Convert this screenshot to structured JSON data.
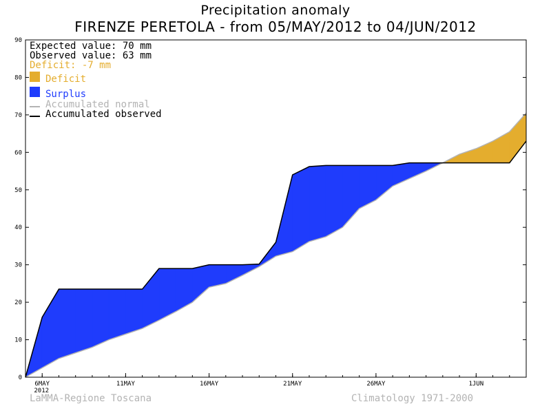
{
  "title": "Precipitation anomaly",
  "subtitle": "FIRENZE PERETOLA - from 05/MAY/2012 to 04/JUN/2012",
  "info": {
    "expected": "Expected value: 70 mm",
    "observed": "Observed value: 63 mm",
    "deficit": "Deficit: -7 mm"
  },
  "legend": {
    "deficit": "Deficit",
    "surplus": "Surplus",
    "normal": "Accumulated normal",
    "observed": "Accumulated observed"
  },
  "footer": {
    "left": "LaMMA-Regione Toscana",
    "right": "Climatology 1971-2000"
  },
  "colors": {
    "deficit": "#e4ad2e",
    "surplus": "#1f3cfc",
    "normal": "#b3b3b3",
    "observed": "#000000",
    "info_deficit": "#e4ad2e"
  },
  "chart_data": {
    "type": "area",
    "title": "Precipitation anomaly",
    "subtitle": "FIRENZE PERETOLA - from 05/MAY/2012 to 04/JUN/2012",
    "xlabel": "",
    "ylabel": "",
    "ylim": [
      0,
      90
    ],
    "yticks": [
      0,
      10,
      20,
      30,
      40,
      50,
      60,
      70,
      80,
      90
    ],
    "xticks": [
      {
        "day": 1,
        "label": "6MAY",
        "sublabel": "2012"
      },
      {
        "day": 6,
        "label": "11MAY"
      },
      {
        "day": 11,
        "label": "16MAY"
      },
      {
        "day": 16,
        "label": "21MAY"
      },
      {
        "day": 21,
        "label": "26MAY"
      },
      {
        "day": 27,
        "label": "1JUN"
      }
    ],
    "xlim": [
      0,
      30
    ],
    "x": [
      "05/MAY",
      "06/MAY",
      "07/MAY",
      "08/MAY",
      "09/MAY",
      "10/MAY",
      "11/MAY",
      "12/MAY",
      "13/MAY",
      "14/MAY",
      "15/MAY",
      "16/MAY",
      "17/MAY",
      "18/MAY",
      "19/MAY",
      "20/MAY",
      "21/MAY",
      "22/MAY",
      "23/MAY",
      "24/MAY",
      "25/MAY",
      "26/MAY",
      "27/MAY",
      "28/MAY",
      "29/MAY",
      "30/MAY",
      "31/MAY",
      "01/JUN",
      "02/JUN",
      "03/JUN",
      "04/JUN"
    ],
    "series": [
      {
        "name": "Accumulated normal",
        "values": [
          0,
          2.5,
          5,
          6.5,
          8,
          10,
          11.5,
          13,
          15.2,
          17.5,
          20,
          24,
          25,
          27.2,
          29.5,
          32.3,
          33.5,
          36.2,
          37.5,
          40,
          45,
          47.3,
          51,
          53,
          55,
          57.2,
          59.5,
          61,
          63,
          65.5,
          70.5
        ]
      },
      {
        "name": "Accumulated observed",
        "values": [
          0,
          16,
          23.5,
          23.5,
          23.5,
          23.5,
          23.5,
          23.5,
          29,
          29,
          29,
          30,
          30,
          30,
          30.2,
          36,
          54,
          56.2,
          56.5,
          56.5,
          56.5,
          56.5,
          56.5,
          57.2,
          57.2,
          57.2,
          57.2,
          57.2,
          57.2,
          57.2,
          63
        ]
      }
    ],
    "fill_between": {
      "above_observed": "Deficit",
      "below_observed": "Surplus"
    }
  }
}
